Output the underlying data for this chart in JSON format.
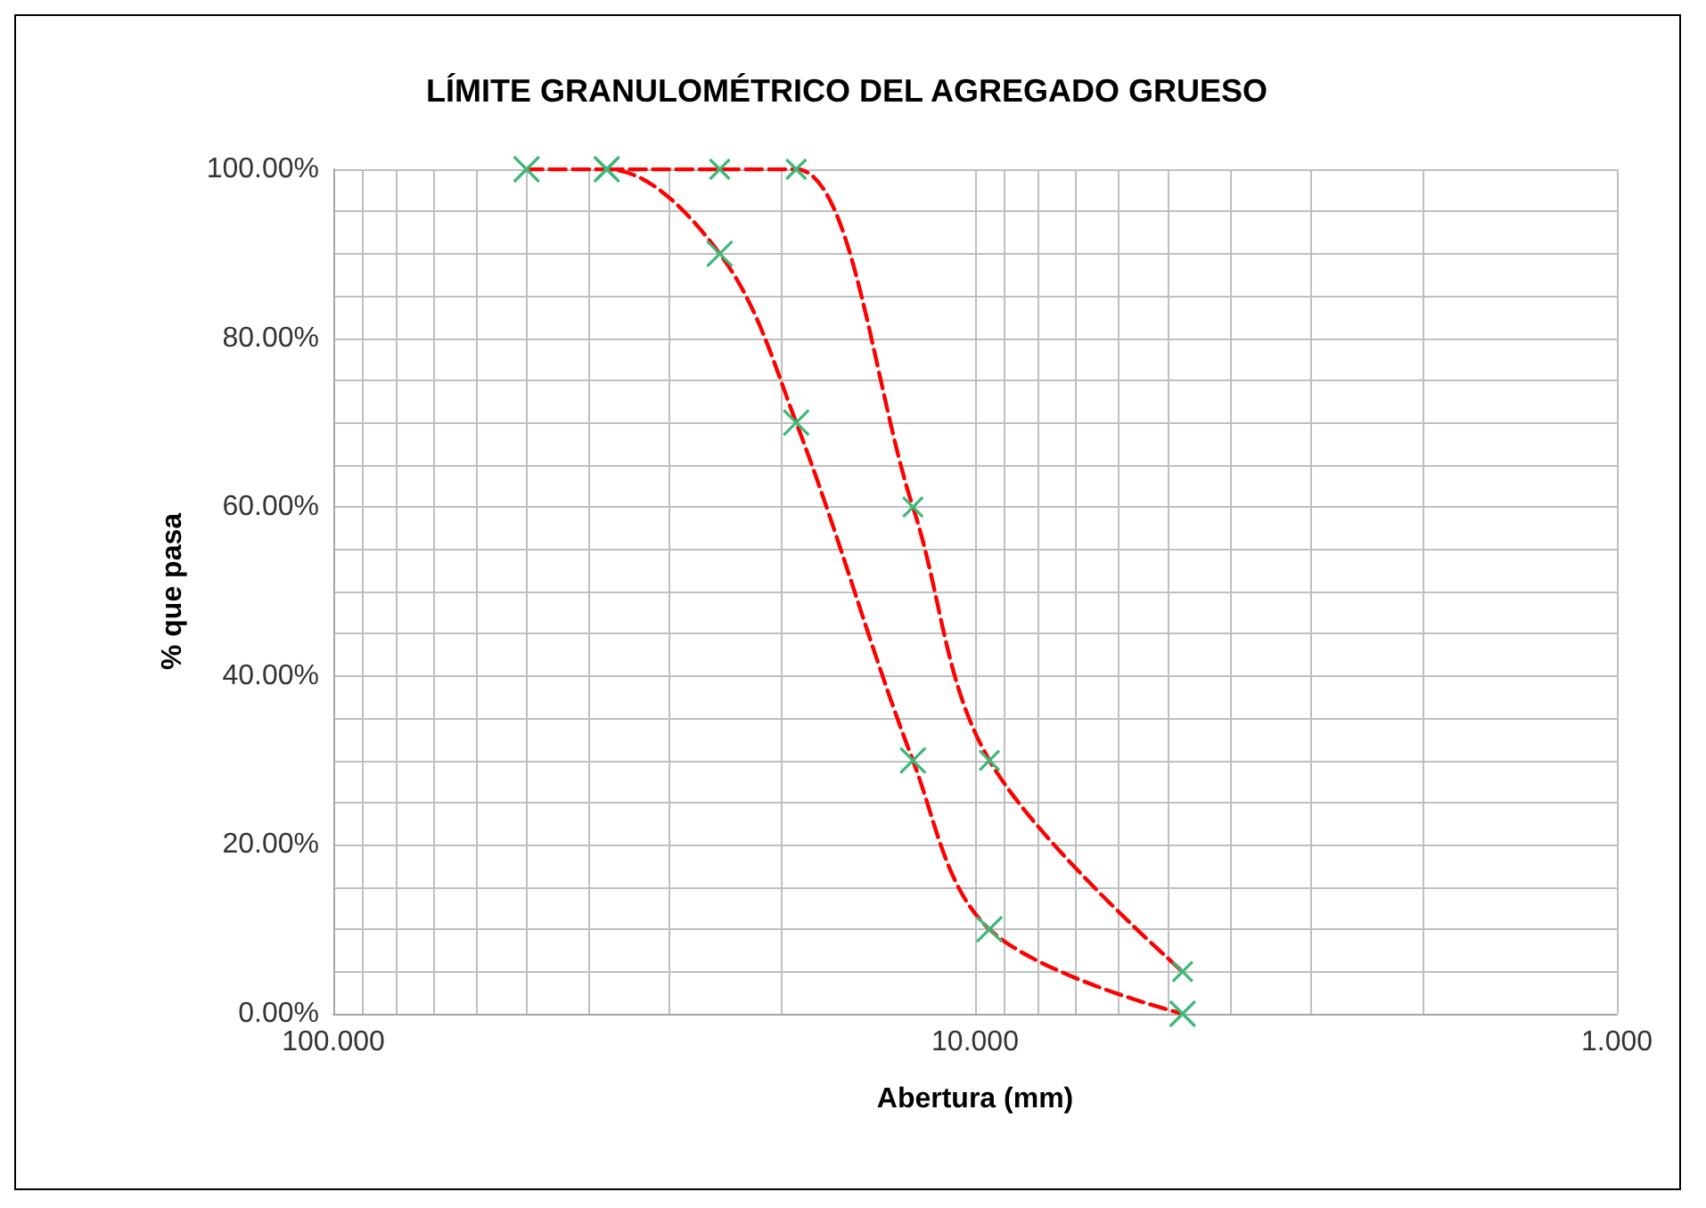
{
  "chart_data": {
    "type": "line",
    "title": "LÍMITE GRANULOMÉTRICO DEL AGREGADO GRUESO",
    "xlabel": "Abertura (mm)",
    "ylabel": "% que pasa",
    "log": "x",
    "xlim": [
      100,
      1
    ],
    "ylim": [
      0,
      100
    ],
    "xticks": [
      {
        "value": 100,
        "label": "100.000"
      },
      {
        "value": 90,
        "label": null
      },
      {
        "value": 80,
        "label": null
      },
      {
        "value": 70,
        "label": null
      },
      {
        "value": 60,
        "label": null
      },
      {
        "value": 50,
        "label": null
      },
      {
        "value": 40,
        "label": null
      },
      {
        "value": 30,
        "label": null
      },
      {
        "value": 20,
        "label": null
      },
      {
        "value": 10,
        "label": "10.000"
      },
      {
        "value": 9,
        "label": null
      },
      {
        "value": 8,
        "label": null
      },
      {
        "value": 7,
        "label": null
      },
      {
        "value": 6,
        "label": null
      },
      {
        "value": 5,
        "label": null
      },
      {
        "value": 4,
        "label": null
      },
      {
        "value": 3,
        "label": null
      },
      {
        "value": 2,
        "label": null
      },
      {
        "value": 1,
        "label": "1.000"
      }
    ],
    "yticks": [
      {
        "value": 0,
        "label": "0.00%"
      },
      {
        "value": 5,
        "label": null
      },
      {
        "value": 10,
        "label": null
      },
      {
        "value": 15,
        "label": null
      },
      {
        "value": 20,
        "label": "20.00%"
      },
      {
        "value": 25,
        "label": null
      },
      {
        "value": 30,
        "label": null
      },
      {
        "value": 35,
        "label": null
      },
      {
        "value": 40,
        "label": "40.00%"
      },
      {
        "value": 45,
        "label": null
      },
      {
        "value": 50,
        "label": null
      },
      {
        "value": 55,
        "label": null
      },
      {
        "value": 60,
        "label": "60.00%"
      },
      {
        "value": 65,
        "label": null
      },
      {
        "value": 70,
        "label": null
      },
      {
        "value": 75,
        "label": null
      },
      {
        "value": 80,
        "label": "80.00%"
      },
      {
        "value": 85,
        "label": null
      },
      {
        "value": 90,
        "label": null
      },
      {
        "value": 95,
        "label": null
      },
      {
        "value": 100,
        "label": "100.00%"
      }
    ],
    "grid": true,
    "marker": "cross",
    "line_style": "dashed",
    "series": [
      {
        "color": "#ff0000",
        "colors": [
          "#3cb878",
          "#3cb878",
          "#3cb878",
          "#3cb878",
          "#3cb878",
          "#3cb878",
          "#3cb878"
        ],
        "x": [
          50,
          37.5,
          25,
          19,
          12.5,
          9.5,
          4.75
        ],
        "values": [
          100,
          100,
          90,
          70,
          30,
          10,
          0
        ]
      },
      {
        "color": "#ff0000",
        "colors": [
          "#3cb878",
          "#3cb878",
          "#3cb878",
          "#3cb878",
          "#3cb878",
          "#3cb878"
        ],
        "x": [
          37.5,
          25,
          19,
          12.5,
          9.5,
          4.75
        ],
        "values": [
          100,
          100,
          100,
          60,
          30,
          5
        ]
      }
    ]
  }
}
